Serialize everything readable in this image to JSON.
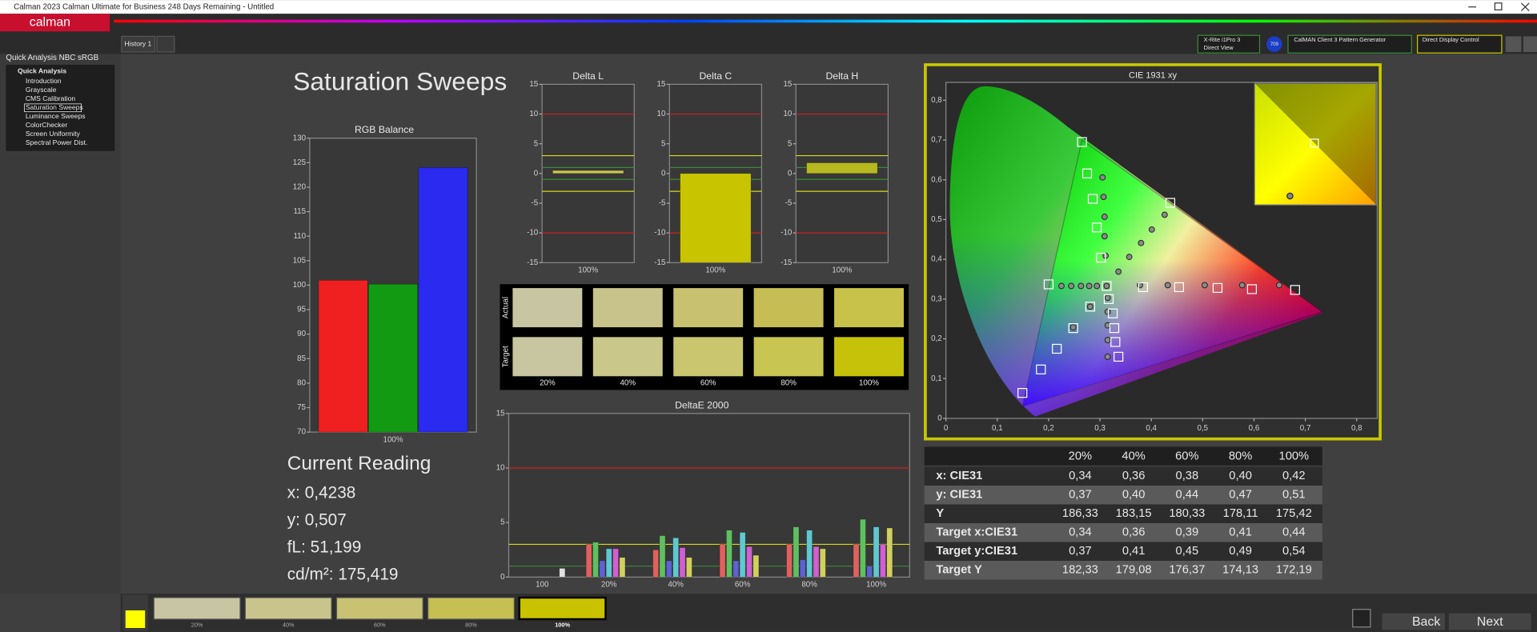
{
  "window": {
    "title": "Calman 2023 Calman Ultimate for Business 248 Days Remaining  - Untitled"
  },
  "toolbar": {
    "logo": "calman",
    "tab": "History 1",
    "meter": [
      "X-Rite i1Pro 3",
      "Direct View"
    ],
    "color_space": "709",
    "generator": "CalMAN Client 3 Pattern Generator",
    "display_control": "Direct Display Control"
  },
  "sidebar": {
    "workflow": "Quick Analysis NBC sRGB",
    "group": "Quick Analysis",
    "items": [
      "Introduction",
      "Grayscale",
      "CMS Calibration",
      "Saturation Sweeps",
      "Luminance Sweeps",
      "ColorChecker",
      "Screen Uniformity",
      "Spectral Power Dist."
    ],
    "selected": 3
  },
  "page": {
    "title": "Saturation Sweeps"
  },
  "rgb_balance": {
    "type": "bar",
    "title": "RGB Balance",
    "categories": [
      "100%"
    ],
    "series": [
      {
        "color": "#f02020",
        "values": [
          101
        ]
      },
      {
        "color": "#139a13",
        "values": [
          100.2
        ]
      },
      {
        "color": "#2a2af0",
        "values": [
          124
        ]
      }
    ],
    "ylim": [
      70,
      130
    ],
    "yticks": [
      70,
      75,
      80,
      85,
      90,
      95,
      100,
      105,
      110,
      115,
      120,
      125,
      130
    ]
  },
  "delta_charts": [
    {
      "type": "bar",
      "title": "Delta L",
      "categories": [
        "100%"
      ],
      "values": [
        0.5
      ],
      "color": "#c8c650",
      "ylim": [
        -15,
        15
      ],
      "yticks": [
        15,
        10,
        5,
        0,
        -5,
        -10,
        -15
      ],
      "thresholds": [
        {
          "value": 10,
          "color": "#d02020"
        },
        {
          "value": -10,
          "color": "#d02020"
        },
        {
          "value": 3,
          "color": "#d8d820"
        },
        {
          "value": -3,
          "color": "#d8d820"
        },
        {
          "value": 1,
          "color": "#3a8a3a"
        },
        {
          "value": -1,
          "color": "#3a8a3a"
        }
      ]
    },
    {
      "type": "bar",
      "title": "Delta C",
      "categories": [
        "100%"
      ],
      "values": [
        -15
      ],
      "color": "#c8c400",
      "ylim": [
        -15,
        15
      ],
      "yticks": [
        15,
        10,
        5,
        0,
        -5,
        -10,
        -15
      ],
      "thresholds": [
        {
          "value": 10,
          "color": "#d02020"
        },
        {
          "value": -10,
          "color": "#d02020"
        },
        {
          "value": 3,
          "color": "#d8d820"
        },
        {
          "value": -3,
          "color": "#d8d820"
        },
        {
          "value": 1,
          "color": "#3a8a3a"
        },
        {
          "value": -1,
          "color": "#3a8a3a"
        }
      ]
    },
    {
      "type": "bar",
      "title": "Delta H",
      "categories": [
        "100%"
      ],
      "values": [
        1.8
      ],
      "color": "#b8b820",
      "ylim": [
        -15,
        15
      ],
      "yticks": [
        15,
        10,
        5,
        0,
        -5,
        -10,
        -15
      ],
      "thresholds": [
        {
          "value": 10,
          "color": "#d02020"
        },
        {
          "value": -10,
          "color": "#d02020"
        },
        {
          "value": 3,
          "color": "#d8d820"
        },
        {
          "value": -3,
          "color": "#d8d820"
        },
        {
          "value": 1,
          "color": "#3a8a3a"
        },
        {
          "value": -1,
          "color": "#3a8a3a"
        }
      ]
    }
  ],
  "swatches": {
    "rows": [
      "Actual",
      "Target"
    ],
    "columns": [
      "20%",
      "40%",
      "60%",
      "80%",
      "100%"
    ],
    "actual": [
      "#c8c6a2",
      "#c7c38a",
      "#c8c270",
      "#c6be55",
      "#c8c24a"
    ],
    "target": [
      "#c8c6a0",
      "#c9c78a",
      "#cac670",
      "#c9c552",
      "#c6c20a"
    ]
  },
  "deltae": {
    "type": "bar",
    "title": "DeltaE 2000",
    "categories": [
      "100",
      "20%",
      "40%",
      "60%",
      "80%",
      "100%"
    ],
    "series": [
      {
        "color": "#e06060",
        "values": [
          null,
          3.0,
          2.5,
          3.0,
          3.0,
          3.0
        ]
      },
      {
        "color": "#60c060",
        "values": [
          null,
          3.2,
          3.8,
          4.3,
          4.6,
          5.3
        ]
      },
      {
        "color": "#6060d0",
        "values": [
          null,
          1.5,
          1.5,
          1.5,
          1.6,
          1.0
        ]
      },
      {
        "color": "#60c8d0",
        "values": [
          null,
          2.6,
          3.6,
          4.1,
          4.3,
          4.6
        ]
      },
      {
        "color": "#d060d0",
        "values": [
          null,
          2.6,
          2.7,
          2.8,
          2.8,
          3.0
        ]
      },
      {
        "color": "#d0d060",
        "values": [
          null,
          1.8,
          1.8,
          2.0,
          2.6,
          4.5
        ]
      },
      {
        "color": "#e0e0e0",
        "values": [
          0.8,
          null,
          null,
          null,
          null,
          null
        ]
      }
    ],
    "ylim": [
      0,
      15
    ],
    "yticks": [
      0,
      5,
      10,
      15
    ],
    "thresholds": [
      {
        "value": 10,
        "color": "#d02020"
      },
      {
        "value": 3,
        "color": "#d8d820"
      },
      {
        "value": 1,
        "color": "#3a8a3a"
      }
    ]
  },
  "cie": {
    "type": "scatter",
    "title": "CIE 1931 xy",
    "xlim": [
      0,
      0.84
    ],
    "ylim": [
      0,
      0.845
    ],
    "xticks": [
      0,
      {
        "value": 0.1,
        "label": "0,1"
      },
      {
        "value": 0.2,
        "label": "0,2"
      },
      {
        "value": 0.3,
        "label": "0,3"
      },
      {
        "value": 0.4,
        "label": "0,4"
      },
      {
        "value": 0.5,
        "label": "0,5"
      },
      {
        "value": 0.6,
        "label": "0,6"
      },
      {
        "value": 0.7,
        "label": "0,7"
      },
      {
        "value": 0.8,
        "label": "0,8"
      }
    ],
    "yticks": [
      0,
      {
        "value": 0.1,
        "label": "0,1"
      },
      {
        "value": 0.2,
        "label": "0,2"
      },
      {
        "value": 0.3,
        "label": "0,3"
      },
      {
        "value": 0.4,
        "label": "0,4"
      },
      {
        "value": 0.5,
        "label": "0,5"
      },
      {
        "value": 0.6,
        "label": "0,6"
      },
      {
        "value": 0.7,
        "label": "0,7"
      },
      {
        "value": 0.8,
        "label": "0,8"
      }
    ],
    "gamut": {
      "x": [
        0.265,
        0.733,
        0.149
      ],
      "y": [
        0.7,
        0.268,
        0.03
      ]
    },
    "targets": {
      "x": [
        0.265,
        0.275,
        0.286,
        0.294,
        0.302,
        0.313,
        0.384,
        0.454,
        0.529,
        0.596,
        0.68,
        0.149,
        0.185,
        0.216,
        0.248,
        0.281,
        0.2,
        0.317,
        0.325,
        0.328,
        0.33,
        0.336,
        0.437
      ],
      "y": [
        0.695,
        0.616,
        0.552,
        0.48,
        0.404,
        0.333,
        0.33,
        0.33,
        0.328,
        0.325,
        0.323,
        0.064,
        0.123,
        0.175,
        0.227,
        0.281,
        0.337,
        0.3,
        0.264,
        0.227,
        0.192,
        0.155,
        0.542
      ]
    },
    "measured": {
      "x": [
        0.378,
        0.432,
        0.504,
        0.577,
        0.649,
        0.305,
        0.307,
        0.309,
        0.309,
        0.311,
        0.426,
        0.401,
        0.38,
        0.357,
        0.336,
        0.225,
        0.244,
        0.263,
        0.279,
        0.294,
        0.248,
        0.281,
        0.315,
        0.315,
        0.315,
        0.315,
        0.315,
        0.313
      ],
      "y": [
        0.335,
        0.335,
        0.335,
        0.335,
        0.335,
        0.606,
        0.557,
        0.507,
        0.458,
        0.409,
        0.512,
        0.475,
        0.441,
        0.406,
        0.369,
        0.333,
        0.333,
        0.333,
        0.333,
        0.333,
        0.229,
        0.281,
        0.303,
        0.268,
        0.234,
        0.197,
        0.155,
        0.333
      ]
    }
  },
  "table": {
    "header": [
      "20%",
      "40%",
      "60%",
      "80%",
      "100%"
    ],
    "rows": [
      [
        "x: CIE31",
        "0,34",
        "0,36",
        "0,38",
        "0,40",
        "0,42"
      ],
      [
        "y: CIE31",
        "0,37",
        "0,40",
        "0,44",
        "0,47",
        "0,51"
      ],
      [
        "Y",
        "186,33",
        "183,15",
        "180,33",
        "178,11",
        "175,42"
      ],
      [
        "Target x:CIE31",
        "0,34",
        "0,36",
        "0,39",
        "0,41",
        "0,44"
      ],
      [
        "Target y:CIE31",
        "0,37",
        "0,41",
        "0,45",
        "0,49",
        "0,54"
      ],
      [
        "Target Y",
        "182,33",
        "179,08",
        "176,37",
        "174,13",
        "172,19"
      ]
    ]
  },
  "reading": {
    "title": "Current Reading",
    "lines": [
      "x: 0,4238",
      "y: 0,507",
      "fL: 51,199",
      "cd/m²: 175,419"
    ]
  },
  "footer": {
    "labels": [
      "20%",
      "40%",
      "60%",
      "80%",
      "100%"
    ],
    "colors": [
      "#c8c6a2",
      "#c8c48c",
      "#c8c272",
      "#c6c052",
      "#c8c200"
    ],
    "selected": 4,
    "current_color": "#ffff00",
    "back": "Back",
    "next": "Next"
  }
}
